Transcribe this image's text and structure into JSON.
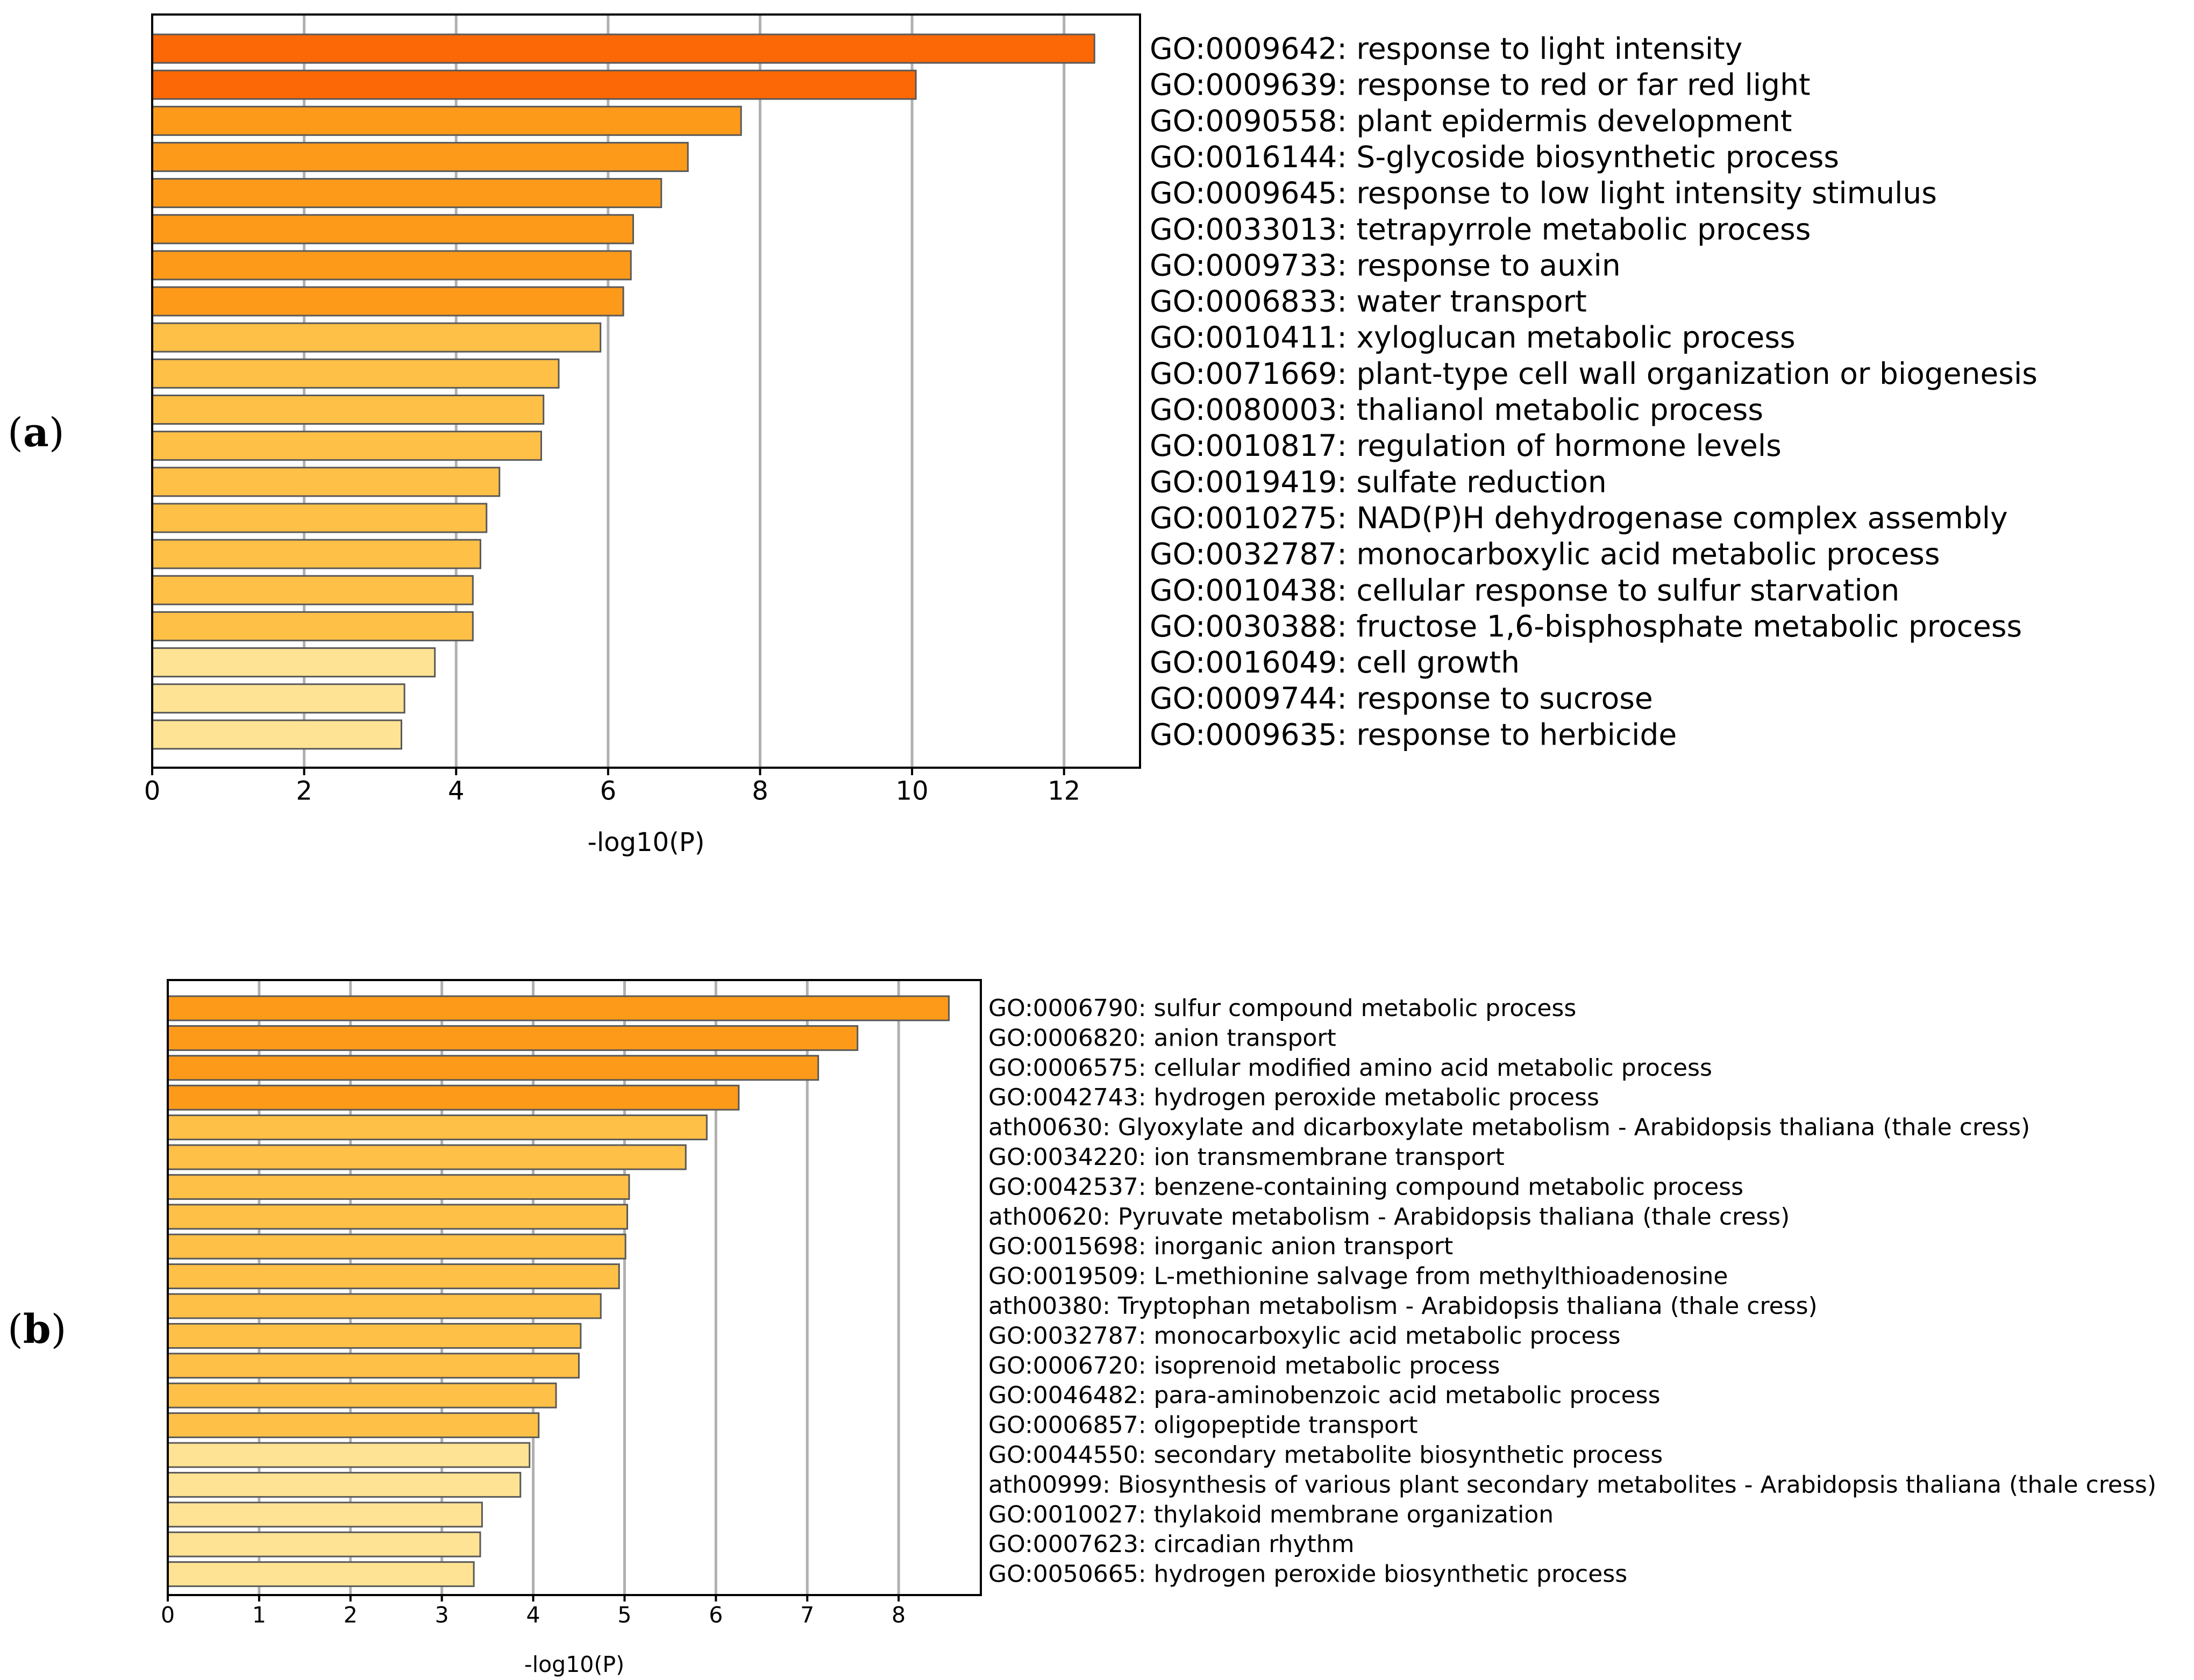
{
  "chart_data": [
    {
      "type": "bar",
      "orientation": "horizontal",
      "panel_label": "(a)",
      "panel_letter": "a",
      "xlabel": "-log10(P)",
      "xlim": [
        0,
        13
      ],
      "xticks": [
        0,
        2,
        4,
        6,
        8,
        10,
        12
      ],
      "grid": "vertical",
      "categories": [
        "GO:0009642: response to light intensity",
        "GO:0009639: response to red or far red light",
        "GO:0090558: plant epidermis development",
        "GO:0016144: S-glycoside biosynthetic process",
        "GO:0009645: response to low light intensity stimulus",
        "GO:0033013: tetrapyrrole metabolic process",
        "GO:0009733: response to auxin",
        "GO:0006833: water transport",
        "GO:0010411: xyloglucan metabolic process",
        "GO:0071669: plant-type cell wall organization or biogenesis",
        "GO:0080003: thalianol metabolic process",
        "GO:0010817: regulation of hormone levels",
        "GO:0019419: sulfate reduction",
        "GO:0010275: NAD(P)H dehydrogenase complex assembly",
        "GO:0032787: monocarboxylic acid metabolic process",
        "GO:0010438: cellular response to sulfur starvation",
        "GO:0030388: fructose 1,6-bisphosphate metabolic process",
        "GO:0016049: cell growth",
        "GO:0009744: response to sucrose",
        "GO:0009635: response to herbicide"
      ],
      "values": [
        12.4,
        10.05,
        7.75,
        7.05,
        6.7,
        6.33,
        6.3,
        6.2,
        5.9,
        5.35,
        5.15,
        5.12,
        4.57,
        4.4,
        4.32,
        4.22,
        4.22,
        3.72,
        3.32,
        3.28
      ],
      "colors": [
        "#fb6805",
        "#fb6805",
        "#fd9a1a",
        "#fd9a1a",
        "#fd9a1a",
        "#fd9a1a",
        "#fd9a1a",
        "#fd9a1a",
        "#fec047",
        "#fec047",
        "#fec047",
        "#fec047",
        "#fec047",
        "#fec047",
        "#fec047",
        "#fec047",
        "#fec047",
        "#fee394",
        "#fee394",
        "#fee394"
      ]
    },
    {
      "type": "bar",
      "orientation": "horizontal",
      "panel_label": "(b)",
      "panel_letter": "b",
      "xlabel": "-log10(P)",
      "xlim": [
        0,
        8.9
      ],
      "xticks": [
        0,
        1,
        2,
        3,
        4,
        5,
        6,
        7,
        8
      ],
      "grid": "vertical",
      "categories": [
        "GO:0006790: sulfur compound metabolic process",
        "GO:0006820: anion transport",
        "GO:0006575: cellular modified amino acid metabolic process",
        "GO:0042743: hydrogen peroxide metabolic process",
        "ath00630: Glyoxylate and dicarboxylate metabolism - Arabidopsis thaliana (thale cress)",
        "GO:0034220: ion transmembrane transport",
        "GO:0042537: benzene-containing compound metabolic process",
        "ath00620: Pyruvate metabolism - Arabidopsis thaliana (thale cress)",
        "GO:0015698: inorganic anion transport",
        "GO:0019509: L-methionine salvage from methylthioadenosine",
        "ath00380: Tryptophan metabolism - Arabidopsis thaliana (thale cress)",
        "GO:0032787: monocarboxylic acid metabolic process",
        "GO:0006720: isoprenoid metabolic process",
        "GO:0046482: para-aminobenzoic acid metabolic process",
        "GO:0006857: oligopeptide transport",
        "GO:0044550: secondary metabolite biosynthetic process",
        "ath00999: Biosynthesis of various plant secondary metabolites - Arabidopsis thaliana (thale cress)",
        "GO:0010027: thylakoid membrane organization",
        "GO:0007623: circadian rhythm",
        "GO:0050665: hydrogen peroxide biosynthetic process"
      ],
      "values": [
        8.55,
        7.55,
        7.12,
        6.25,
        5.9,
        5.67,
        5.05,
        5.03,
        5.01,
        4.94,
        4.74,
        4.52,
        4.5,
        4.25,
        4.06,
        3.96,
        3.86,
        3.44,
        3.42,
        3.35
      ],
      "colors": [
        "#fd9a1a",
        "#fd9a1a",
        "#fd9a1a",
        "#fd9a1a",
        "#fec047",
        "#fec047",
        "#fec047",
        "#fec047",
        "#fec047",
        "#fec047",
        "#fec047",
        "#fec047",
        "#fec047",
        "#fec047",
        "#fec047",
        "#fee394",
        "#fee394",
        "#fee394",
        "#fee394",
        "#fee394"
      ]
    }
  ]
}
